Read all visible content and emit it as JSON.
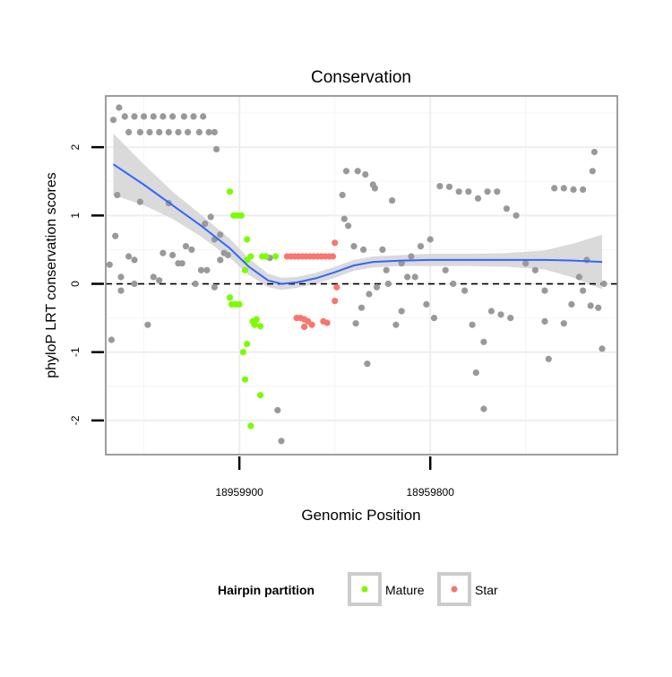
{
  "chart_data": {
    "type": "scatter",
    "title": "Conservation",
    "xlabel": "Genomic Position",
    "ylabel": "phyloP LRT conservation scores",
    "x_ticks": [
      18959900,
      18959800
    ],
    "y_ticks": [
      2,
      1,
      0,
      -1,
      -2
    ],
    "x_reversed": true,
    "xlim": [
      18959970,
      18959702
    ],
    "ylim": [
      -2.5,
      2.75
    ],
    "grid": true,
    "zero_line": true,
    "colors": {
      "other": "#999999",
      "Mature": "#7cfc00",
      "Star": "#f8766d",
      "smooth": "#3366ff",
      "ribbon": "#d3d3d3",
      "zero": "#000000"
    },
    "legend": {
      "title": "Hairpin partition",
      "position": "bottom",
      "entries": [
        {
          "label": "Mature",
          "color": "#7cfc00"
        },
        {
          "label": "Star",
          "color": "#f8766d"
        }
      ]
    },
    "series": [
      {
        "name": "Mature",
        "points": [
          [
            18959905,
            1.35
          ],
          [
            18959903,
            1.0
          ],
          [
            18959901,
            1.0
          ],
          [
            18959899,
            1.0
          ],
          [
            18959896,
            0.65
          ],
          [
            18959894,
            0.4
          ],
          [
            18959896,
            0.35
          ],
          [
            18959897,
            0.2
          ],
          [
            18959905,
            -0.2
          ],
          [
            18959904,
            -0.3
          ],
          [
            18959902,
            -0.3
          ],
          [
            18959900,
            -0.3
          ],
          [
            18959898,
            -1.0
          ],
          [
            18959896,
            -0.88
          ],
          [
            18959897,
            -1.4
          ],
          [
            18959893,
            -0.55
          ],
          [
            18959891,
            -0.52
          ],
          [
            18959889,
            -0.62
          ],
          [
            18959892,
            -0.6
          ],
          [
            18959894,
            -2.08
          ],
          [
            18959889,
            -1.63
          ],
          [
            18959888,
            0.4
          ],
          [
            18959886,
            0.4
          ],
          [
            18959881,
            0.4
          ]
        ]
      },
      {
        "name": "Star",
        "points": [
          [
            18959875,
            0.4
          ],
          [
            18959873,
            0.4
          ],
          [
            18959871,
            0.4
          ],
          [
            18959869,
            0.4
          ],
          [
            18959867,
            0.4
          ],
          [
            18959865,
            0.4
          ],
          [
            18959863,
            0.4
          ],
          [
            18959861,
            0.4
          ],
          [
            18959859,
            0.4
          ],
          [
            18959857,
            0.4
          ],
          [
            18959855,
            0.4
          ],
          [
            18959853,
            0.4
          ],
          [
            18959851,
            0.4
          ],
          [
            18959850,
            0.6
          ],
          [
            18959849,
            -0.05
          ],
          [
            18959850,
            -0.25
          ],
          [
            18959870,
            -0.5
          ],
          [
            18959868,
            -0.5
          ],
          [
            18959866,
            -0.52
          ],
          [
            18959864,
            -0.55
          ],
          [
            18959862,
            -0.6
          ],
          [
            18959866,
            -0.63
          ],
          [
            18959856,
            -0.55
          ],
          [
            18959854,
            -0.57
          ]
        ]
      },
      {
        "name": "",
        "points": [
          [
            18959966,
            2.4
          ],
          [
            18959963,
            2.58
          ],
          [
            18959960,
            2.45
          ],
          [
            18959958,
            2.22
          ],
          [
            18959955,
            2.45
          ],
          [
            18959952,
            2.22
          ],
          [
            18959950,
            2.45
          ],
          [
            18959947,
            2.22
          ],
          [
            18959945,
            2.45
          ],
          [
            18959942,
            2.22
          ],
          [
            18959940,
            2.45
          ],
          [
            18959937,
            2.22
          ],
          [
            18959935,
            2.45
          ],
          [
            18959932,
            2.22
          ],
          [
            18959929,
            2.45
          ],
          [
            18959927,
            2.22
          ],
          [
            18959924,
            2.45
          ],
          [
            18959921,
            2.22
          ],
          [
            18959919,
            2.45
          ],
          [
            18959916,
            2.22
          ],
          [
            18959913,
            2.22
          ],
          [
            18959912,
            1.97
          ],
          [
            18959964,
            1.3
          ],
          [
            18959965,
            0.7
          ],
          [
            18959968,
            0.28
          ],
          [
            18959962,
            0.1
          ],
          [
            18959958,
            0.4
          ],
          [
            18959955,
            0.35
          ],
          [
            18959952,
            1.2
          ],
          [
            18959948,
            -0.6
          ],
          [
            18959945,
            0.1
          ],
          [
            18959940,
            0.45
          ],
          [
            18959937,
            1.18
          ],
          [
            18959935,
            0.42
          ],
          [
            18959932,
            0.3
          ],
          [
            18959928,
            0.55
          ],
          [
            18959925,
            0.5
          ],
          [
            18959923,
            0.0
          ],
          [
            18959920,
            0.2
          ],
          [
            18959918,
            0.88
          ],
          [
            18959915,
            0.98
          ],
          [
            18959913,
            0.65
          ],
          [
            18959910,
            0.72
          ],
          [
            18959908,
            0.45
          ],
          [
            18959906,
            0.42
          ],
          [
            18959910,
            0.35
          ],
          [
            18959913,
            -0.05
          ],
          [
            18959917,
            0.2
          ],
          [
            18959930,
            0.3
          ],
          [
            18959942,
            0.05
          ],
          [
            18959955,
            0.0
          ],
          [
            18959962,
            -0.1
          ],
          [
            18959967,
            -0.82
          ],
          [
            18959880,
            -1.85
          ],
          [
            18959878,
            -2.3
          ],
          [
            18959884,
            0.38
          ],
          [
            18959846,
            1.3
          ],
          [
            18959844,
            1.65
          ],
          [
            18959838,
            1.65
          ],
          [
            18959834,
            1.6
          ],
          [
            18959830,
            1.45
          ],
          [
            18959845,
            0.95
          ],
          [
            18959843,
            0.85
          ],
          [
            18959840,
            0.55
          ],
          [
            18959835,
            0.5
          ],
          [
            18959829,
            1.4
          ],
          [
            18959820,
            1.22
          ],
          [
            18959825,
            0.5
          ],
          [
            18959828,
            -0.05
          ],
          [
            18959832,
            -0.15
          ],
          [
            18959836,
            -0.35
          ],
          [
            18959839,
            -0.58
          ],
          [
            18959833,
            -1.17
          ],
          [
            18959815,
            0.3
          ],
          [
            18959810,
            0.4
          ],
          [
            18959805,
            0.55
          ],
          [
            18959800,
            0.65
          ],
          [
            18959795,
            1.43
          ],
          [
            18959790,
            1.42
          ],
          [
            18959785,
            1.35
          ],
          [
            18959780,
            1.35
          ],
          [
            18959775,
            1.25
          ],
          [
            18959770,
            1.35
          ],
          [
            18959765,
            1.35
          ],
          [
            18959760,
            1.1
          ],
          [
            18959755,
            1.0
          ],
          [
            18959808,
            0.1
          ],
          [
            18959802,
            -0.3
          ],
          [
            18959798,
            -0.5
          ],
          [
            18959792,
            0.2
          ],
          [
            18959788,
            0.0
          ],
          [
            18959782,
            -0.1
          ],
          [
            18959778,
            -0.6
          ],
          [
            18959772,
            -0.85
          ],
          [
            18959768,
            -0.4
          ],
          [
            18959763,
            -0.45
          ],
          [
            18959758,
            -0.5
          ],
          [
            18959776,
            -1.3
          ],
          [
            18959772,
            -1.83
          ],
          [
            18959750,
            0.3
          ],
          [
            18959745,
            0.2
          ],
          [
            18959740,
            -0.1
          ],
          [
            18959738,
            -1.1
          ],
          [
            18959735,
            1.4
          ],
          [
            18959730,
            1.4
          ],
          [
            18959725,
            1.38
          ],
          [
            18959720,
            1.38
          ],
          [
            18959714,
            1.93
          ],
          [
            18959715,
            1.65
          ],
          [
            18959718,
            0.35
          ],
          [
            18959722,
            0.1
          ],
          [
            18959726,
            -0.3
          ],
          [
            18959716,
            -0.32
          ],
          [
            18959712,
            -0.35
          ],
          [
            18959710,
            -0.95
          ],
          [
            18959709,
            0.0
          ],
          [
            18959740,
            -0.55
          ],
          [
            18959730,
            -0.58
          ],
          [
            18959720,
            -0.1
          ],
          [
            18959815,
            -0.4
          ],
          [
            18959818,
            -0.6
          ],
          [
            18959822,
            0.0
          ],
          [
            18959812,
            0.1
          ],
          [
            18959823,
            0.2
          ]
        ]
      }
    ],
    "smooth": [
      [
        18959966,
        1.75
      ],
      [
        18959950,
        1.45
      ],
      [
        18959935,
        1.15
      ],
      [
        18959920,
        0.85
      ],
      [
        18959905,
        0.52
      ],
      [
        18959895,
        0.25
      ],
      [
        18959885,
        0.05
      ],
      [
        18959878,
        0.0
      ],
      [
        18959870,
        0.02
      ],
      [
        18959860,
        0.08
      ],
      [
        18959850,
        0.17
      ],
      [
        18959840,
        0.27
      ],
      [
        18959830,
        0.32
      ],
      [
        18959815,
        0.34
      ],
      [
        18959800,
        0.35
      ],
      [
        18959780,
        0.35
      ],
      [
        18959760,
        0.35
      ],
      [
        18959740,
        0.35
      ],
      [
        18959725,
        0.34
      ],
      [
        18959710,
        0.32
      ]
    ],
    "ribbon_halfwidth": [
      0.45,
      0.3,
      0.2,
      0.16,
      0.14,
      0.12,
      0.1,
      0.09,
      0.08,
      0.08,
      0.08,
      0.08,
      0.08,
      0.08,
      0.09,
      0.09,
      0.1,
      0.14,
      0.25,
      0.4
    ]
  }
}
